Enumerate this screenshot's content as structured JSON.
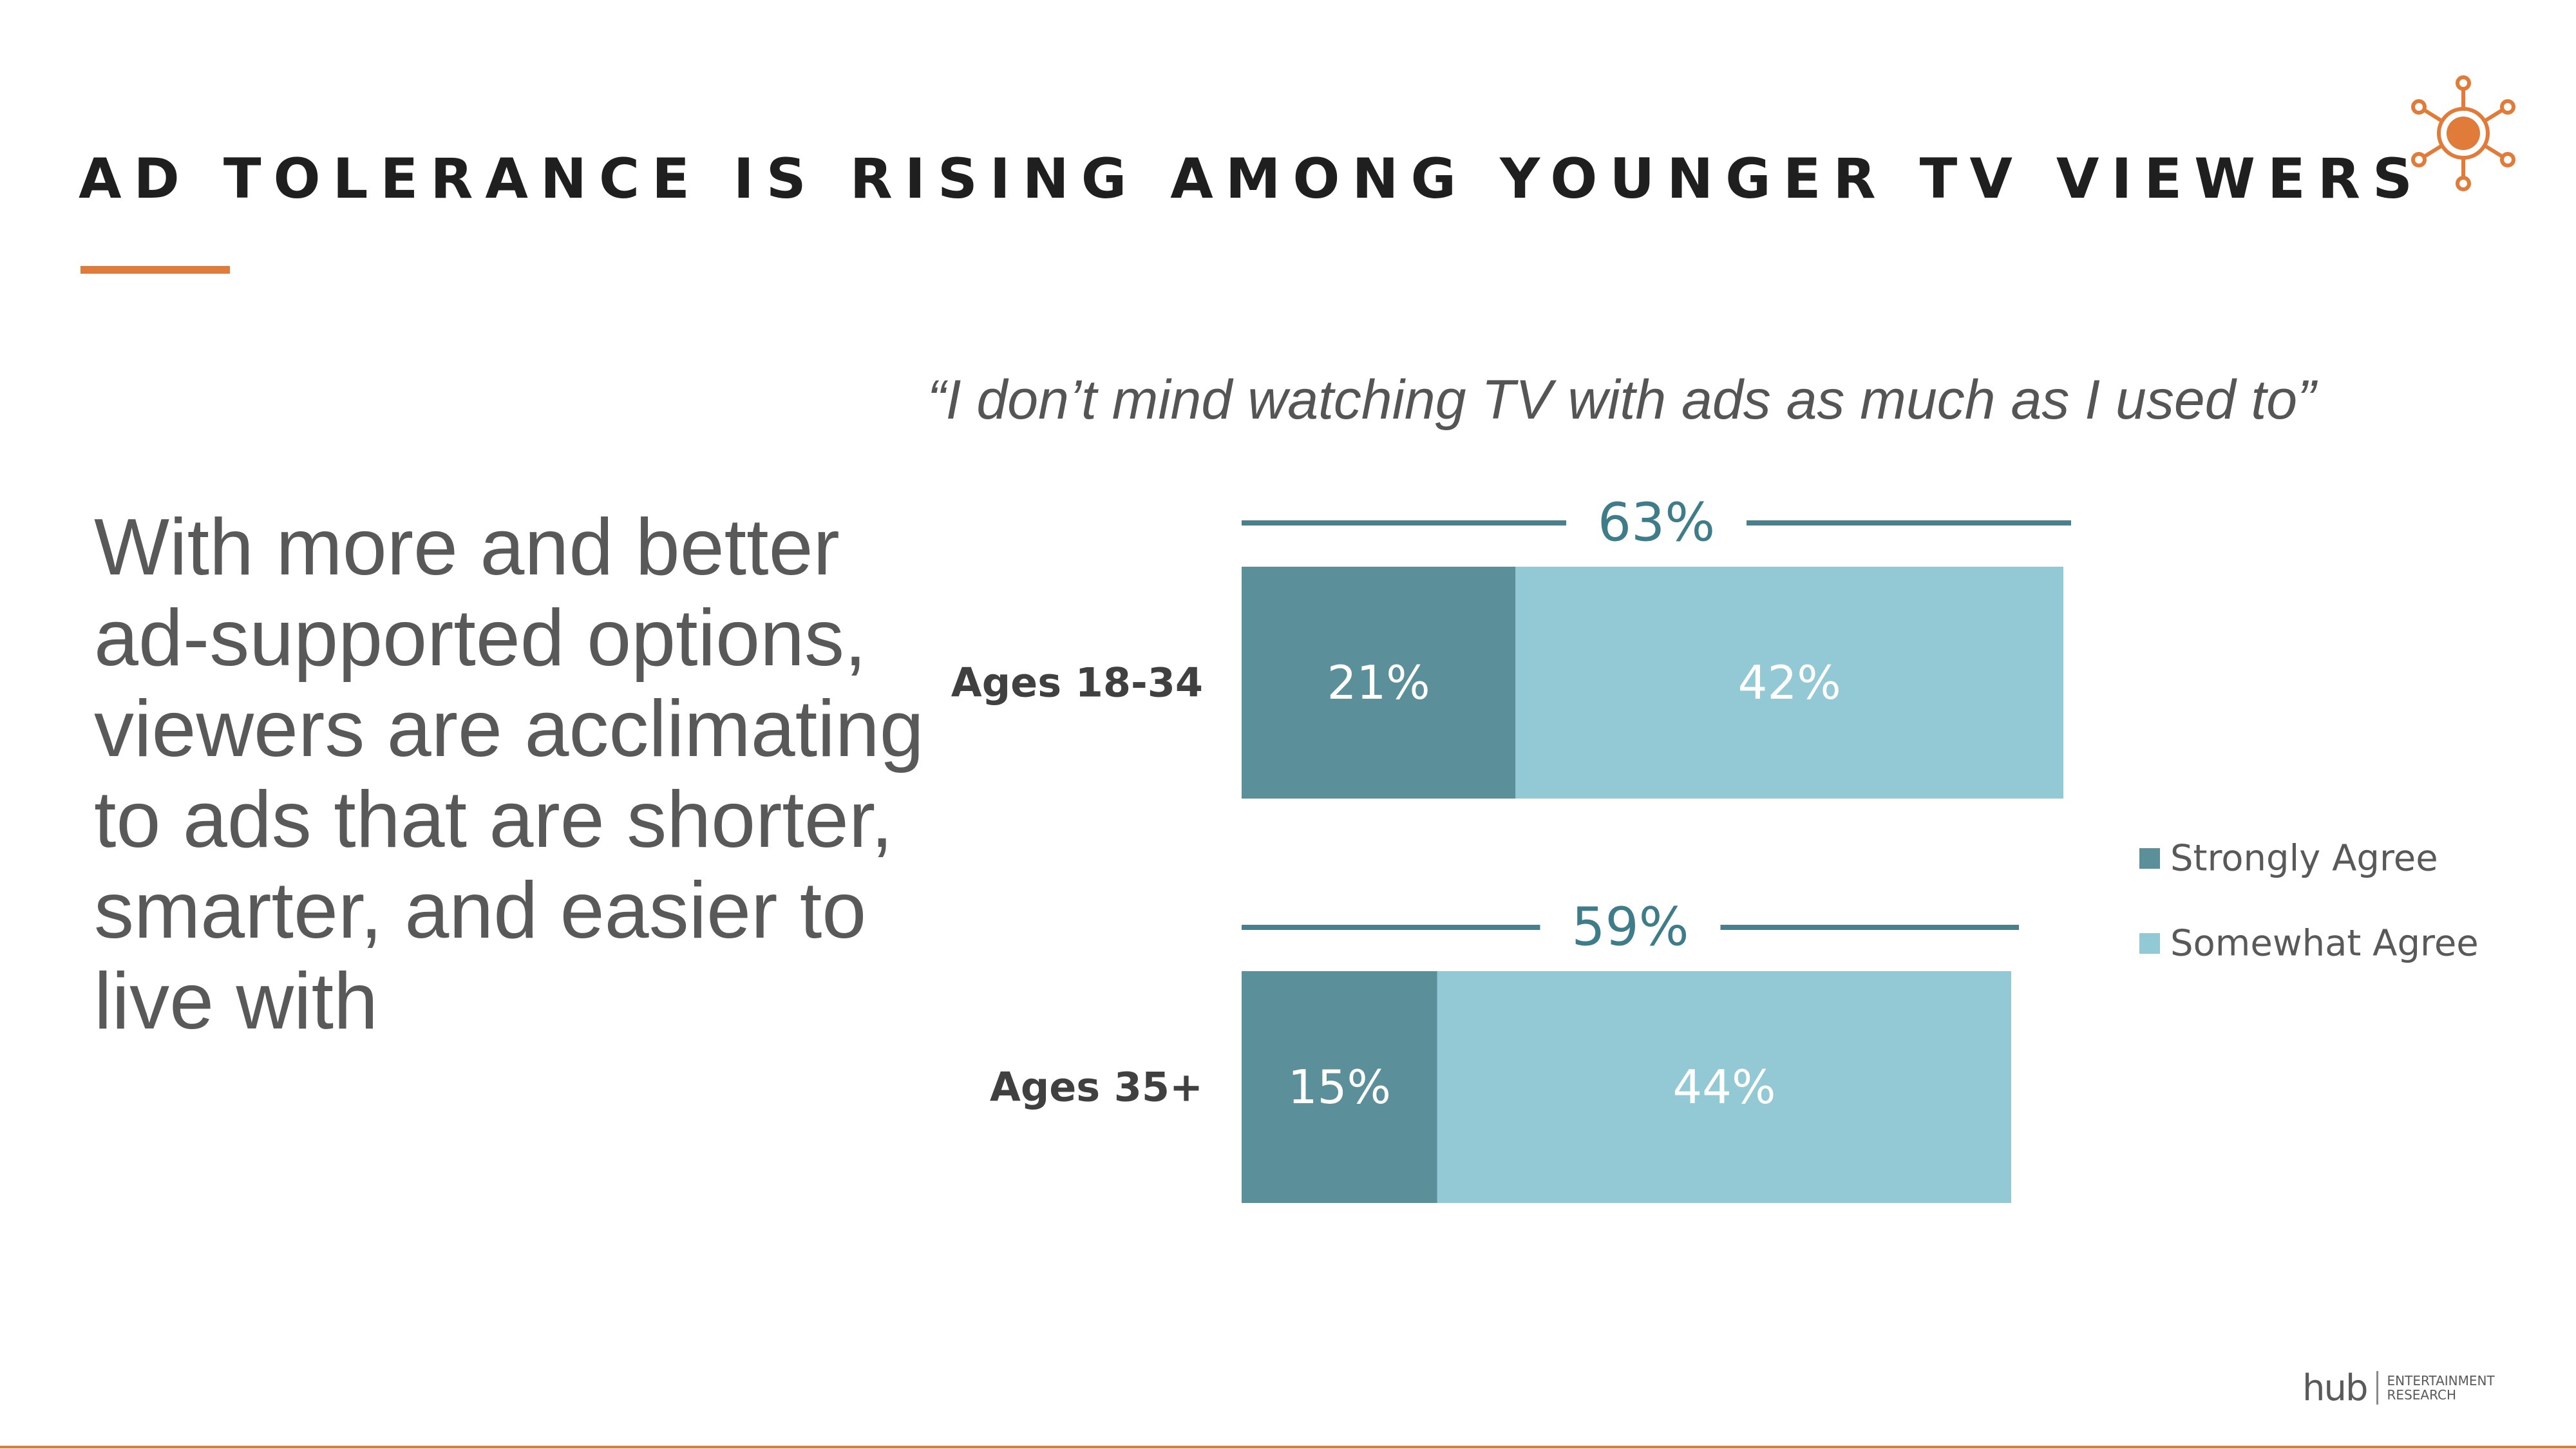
{
  "slide": {
    "title": "AD TOLERANCE IS RISING AMONG YOUNGER TV VIEWERS",
    "body_text": "With more and better ad-supported options, viewers are acclimating to ads that are shorter, smarter, and easier to live with",
    "subtitle": "“I don’t mind watching TV with ads as much as I used to”",
    "accent_color": "#e07b39",
    "logo_icon": "sun-icon"
  },
  "chart_data": {
    "type": "bar",
    "orientation": "horizontal",
    "stacked": true,
    "title": "“I don’t mind watching TV with ads as much as I used to”",
    "categories": [
      "Ages 18-34",
      "Ages 35+"
    ],
    "series": [
      {
        "name": "Strongly Agree",
        "values": [
          21,
          15
        ],
        "labels": [
          "21%",
          "15%"
        ],
        "color": "#5b8f9a"
      },
      {
        "name": "Somewhat Agree",
        "values": [
          42,
          44
        ],
        "labels": [
          "42%",
          "44%"
        ],
        "color": "#92c9d4"
      }
    ],
    "totals": [
      63,
      59
    ],
    "total_labels": [
      "63%",
      "59%"
    ],
    "unit": "%",
    "xlim": [
      0,
      63
    ],
    "grid": false,
    "legend_position": "right"
  },
  "footer": {
    "brand": "hub",
    "brand_line1": "ENTERTAINMENT",
    "brand_line2": "RESEARCH"
  }
}
